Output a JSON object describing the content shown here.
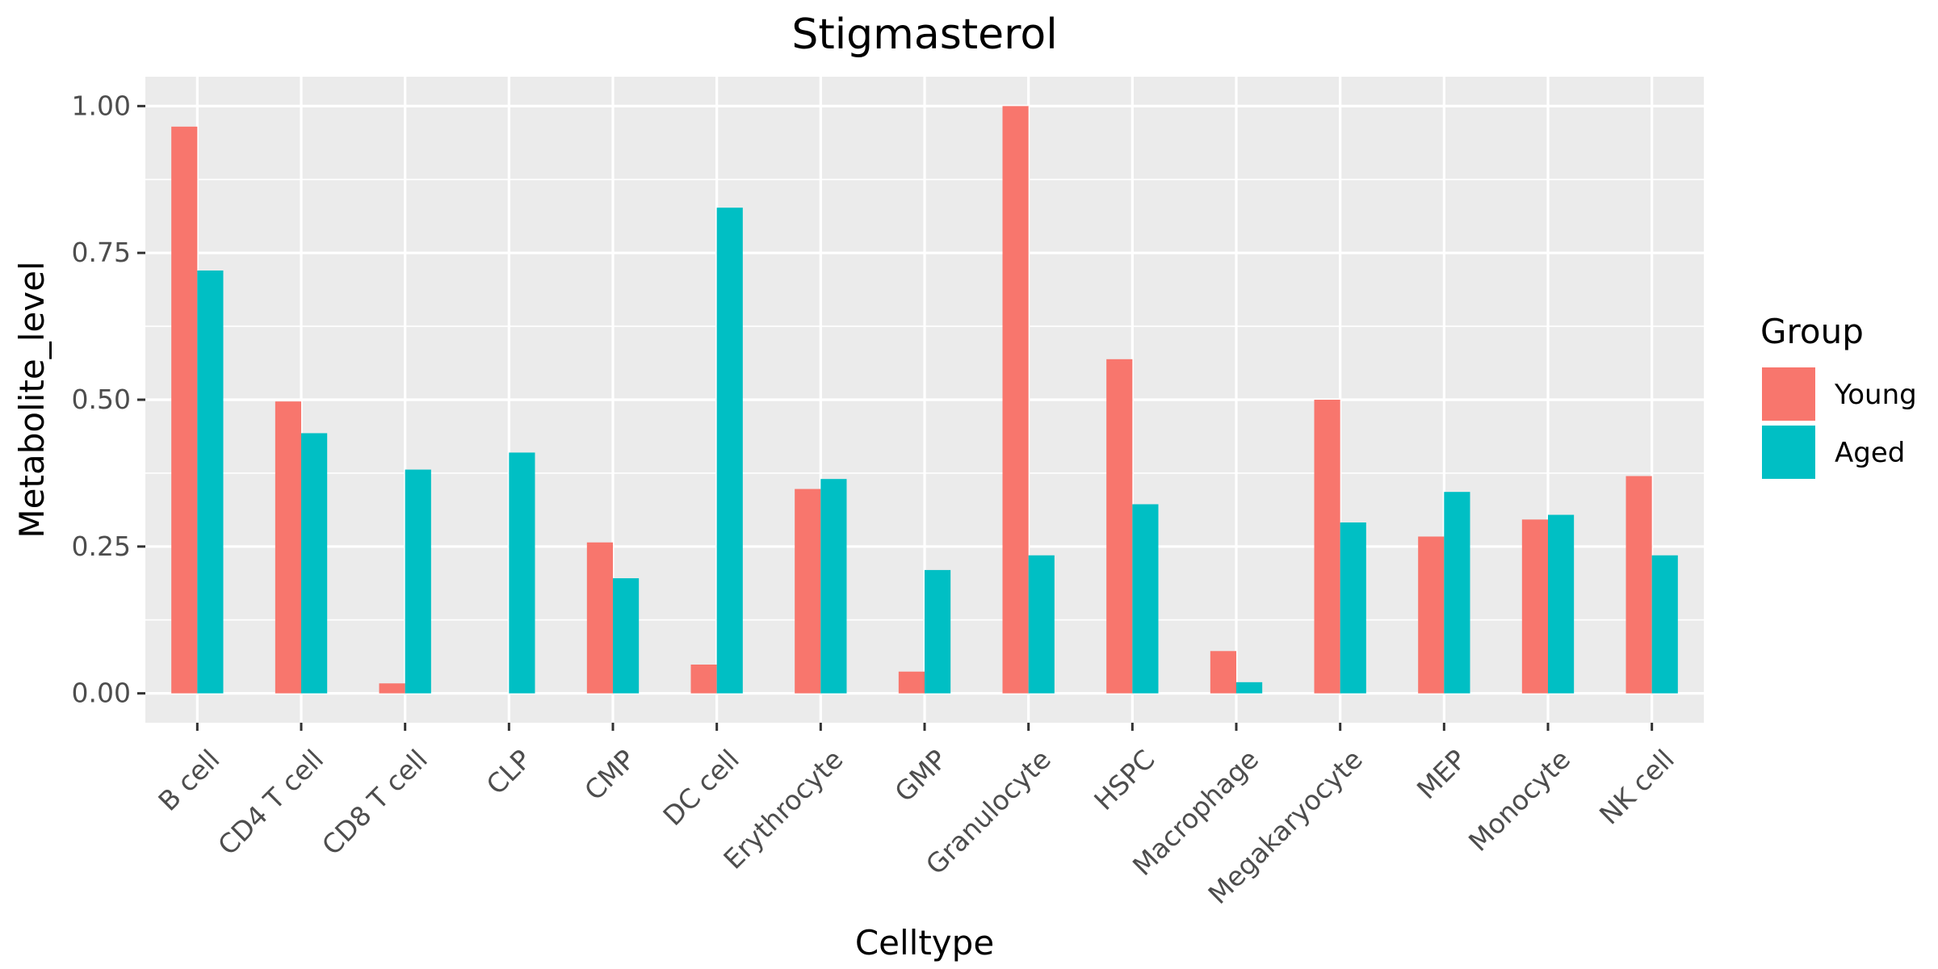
{
  "chart_data": {
    "type": "bar",
    "title": "Stigmasterol",
    "xlabel": "Celltype",
    "ylabel": "Metabolite_level",
    "categories": [
      "B cell",
      "CD4 T cell",
      "CD8 T cell",
      "CLP",
      "CMP",
      "DC cell",
      "Erythrocyte",
      "GMP",
      "Granulocyte",
      "HSPC",
      "Macrophage",
      "Megakaryocyte",
      "MEP",
      "Monocyte",
      "NK cell"
    ],
    "series": [
      {
        "name": "Young",
        "color": "#F8766D",
        "values": [
          0.965,
          0.497,
          0.017,
          0.0,
          0.257,
          0.049,
          0.348,
          0.037,
          1.0,
          0.569,
          0.072,
          0.5,
          0.267,
          0.296,
          0.37
        ]
      },
      {
        "name": "Aged",
        "color": "#00BFC4",
        "values": [
          0.72,
          0.443,
          0.381,
          0.41,
          0.196,
          0.827,
          0.365,
          0.21,
          0.235,
          0.322,
          0.019,
          0.291,
          0.343,
          0.304,
          0.235
        ]
      }
    ],
    "ylim": [
      -0.05,
      1.05
    ],
    "yticks": [
      0.0,
      0.25,
      0.5,
      0.75,
      1.0
    ],
    "ytick_labels": [
      "0.00",
      "0.25",
      "0.50",
      "0.75",
      "1.00"
    ],
    "grid": true,
    "legend": {
      "title": "Group",
      "position": "right"
    }
  }
}
